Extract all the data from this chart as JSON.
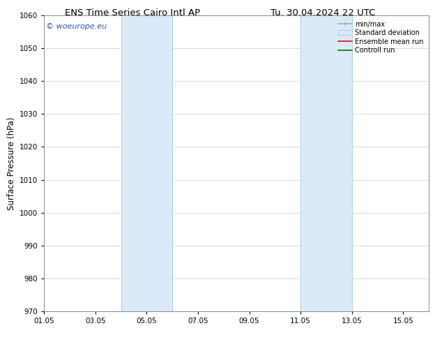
{
  "title_left": "ENS Time Series Cairo Intl AP",
  "title_right": "Tu. 30.04.2024 22 UTC",
  "ylabel": "Surface Pressure (hPa)",
  "ylim": [
    970,
    1060
  ],
  "yticks": [
    970,
    980,
    990,
    1000,
    1010,
    1020,
    1030,
    1040,
    1050,
    1060
  ],
  "xtick_labels": [
    "01.05",
    "03.05",
    "05.05",
    "07.05",
    "09.05",
    "11.05",
    "13.05",
    "15.05"
  ],
  "xtick_positions": [
    0,
    2,
    4,
    6,
    8,
    10,
    12,
    14
  ],
  "xlim": [
    0,
    15
  ],
  "shaded_regions": [
    {
      "start": 3,
      "end": 5
    },
    {
      "start": 10,
      "end": 12
    }
  ],
  "shaded_color": "#daeaf8",
  "shaded_edge_color": "#aaccee",
  "watermark_text": "© woeurope.eu",
  "watermark_color": "#2255cc",
  "legend_labels": [
    "min/max",
    "Standard deviation",
    "Ensemble mean run",
    "Controll run"
  ],
  "legend_line_color_minmax": "#aaaaaa",
  "legend_patch_color": "#daeaf8",
  "legend_patch_edge": "#aaccee",
  "legend_red": "#ff0000",
  "legend_green": "#007700",
  "bg_color": "#ffffff",
  "grid_color": "#cccccc",
  "spine_color": "#888888",
  "title_fontsize": 9.5,
  "ylabel_fontsize": 8.5,
  "tick_fontsize": 7.5,
  "legend_fontsize": 7.0,
  "watermark_fontsize": 8.0
}
